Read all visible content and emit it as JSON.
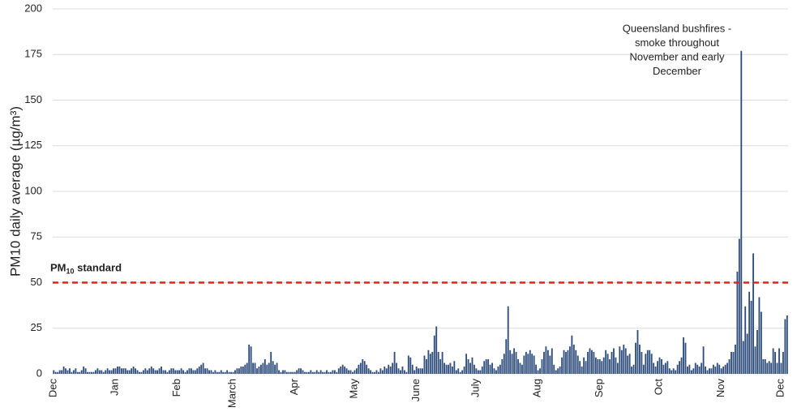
{
  "chart_data": {
    "type": "bar",
    "ylabel": "PM10 daily average (µg/m³)",
    "categories": [
      "Dec",
      null,
      null,
      null,
      null,
      null,
      null,
      null,
      null,
      null,
      null,
      null,
      null,
      null,
      null,
      null,
      null,
      null,
      null,
      null,
      null,
      null,
      null,
      null,
      null,
      null,
      null,
      null,
      null,
      null,
      null,
      "Jan",
      null,
      null,
      null,
      null,
      null,
      null,
      null,
      null,
      null,
      null,
      null,
      null,
      null,
      null,
      null,
      null,
      null,
      null,
      null,
      null,
      null,
      null,
      null,
      null,
      null,
      null,
      null,
      null,
      null,
      null,
      "Feb",
      null,
      null,
      null,
      null,
      null,
      null,
      null,
      null,
      null,
      null,
      null,
      null,
      null,
      null,
      null,
      null,
      null,
      null,
      null,
      null,
      null,
      null,
      null,
      null,
      null,
      null,
      null,
      "March",
      null,
      null,
      null,
      null,
      null,
      null,
      null,
      null,
      null,
      null,
      null,
      null,
      null,
      null,
      null,
      null,
      null,
      null,
      null,
      null,
      null,
      null,
      null,
      null,
      null,
      null,
      null,
      null,
      null,
      null,
      "Apr",
      null,
      null,
      null,
      null,
      null,
      null,
      null,
      null,
      null,
      null,
      null,
      null,
      null,
      null,
      null,
      null,
      null,
      null,
      null,
      null,
      null,
      null,
      null,
      null,
      null,
      null,
      null,
      null,
      null,
      "May",
      null,
      null,
      null,
      null,
      null,
      null,
      null,
      null,
      null,
      null,
      null,
      null,
      null,
      null,
      null,
      null,
      null,
      null,
      null,
      null,
      null,
      null,
      null,
      null,
      null,
      null,
      null,
      null,
      null,
      null,
      "June",
      null,
      null,
      null,
      null,
      null,
      null,
      null,
      null,
      null,
      null,
      null,
      null,
      null,
      null,
      null,
      null,
      null,
      null,
      null,
      null,
      null,
      null,
      null,
      null,
      null,
      null,
      null,
      null,
      null,
      "July",
      null,
      null,
      null,
      null,
      null,
      null,
      null,
      null,
      null,
      null,
      null,
      null,
      null,
      null,
      null,
      null,
      null,
      null,
      null,
      null,
      null,
      null,
      null,
      null,
      null,
      null,
      null,
      null,
      null,
      null,
      "Aug",
      null,
      null,
      null,
      null,
      null,
      null,
      null,
      null,
      null,
      null,
      null,
      null,
      null,
      null,
      null,
      null,
      null,
      null,
      null,
      null,
      null,
      null,
      null,
      null,
      null,
      null,
      null,
      null,
      null,
      null,
      "Sep",
      null,
      null,
      null,
      null,
      null,
      null,
      null,
      null,
      null,
      null,
      null,
      null,
      null,
      null,
      null,
      null,
      null,
      null,
      null,
      null,
      null,
      null,
      null,
      null,
      null,
      null,
      null,
      null,
      null,
      "Oct",
      null,
      null,
      null,
      null,
      null,
      null,
      null,
      null,
      null,
      null,
      null,
      null,
      null,
      null,
      null,
      null,
      null,
      null,
      null,
      null,
      null,
      null,
      null,
      null,
      null,
      null,
      null,
      null,
      null,
      null,
      "Nov",
      null,
      null,
      null,
      null,
      null,
      null,
      null,
      null,
      null,
      null,
      null,
      null,
      null,
      null,
      null,
      null,
      null,
      null,
      null,
      null,
      null,
      null,
      null,
      null,
      null,
      null,
      null,
      null,
      null,
      "Dec",
      null,
      null,
      null
    ],
    "values": [
      2,
      1,
      1,
      2,
      2,
      4,
      3,
      2,
      3,
      1,
      2,
      3,
      1,
      1,
      2,
      4,
      3,
      1,
      1,
      1,
      1,
      2,
      3,
      2,
      2,
      1,
      2,
      3,
      2,
      2,
      3,
      3,
      4,
      4,
      3,
      3,
      3,
      2,
      2,
      3,
      4,
      3,
      2,
      1,
      1,
      2,
      3,
      2,
      3,
      4,
      3,
      2,
      2,
      3,
      4,
      2,
      2,
      1,
      2,
      3,
      3,
      2,
      2,
      2,
      3,
      2,
      1,
      2,
      3,
      3,
      2,
      2,
      3,
      4,
      5,
      6,
      3,
      3,
      2,
      2,
      1,
      2,
      1,
      1,
      2,
      1,
      1,
      2,
      1,
      1,
      1,
      2,
      3,
      3,
      4,
      4,
      5,
      6,
      16,
      15,
      6,
      6,
      3,
      4,
      5,
      6,
      8,
      5,
      6,
      12,
      7,
      5,
      6,
      2,
      1,
      2,
      2,
      1,
      1,
      1,
      1,
      1,
      2,
      3,
      3,
      2,
      1,
      1,
      1,
      2,
      1,
      1,
      2,
      1,
      2,
      1,
      1,
      2,
      1,
      1,
      2,
      2,
      1,
      3,
      4,
      5,
      4,
      3,
      2,
      2,
      1,
      2,
      3,
      5,
      6,
      8,
      7,
      5,
      3,
      2,
      1,
      1,
      2,
      1,
      3,
      2,
      4,
      3,
      5,
      4,
      6,
      12,
      6,
      3,
      2,
      4,
      2,
      1,
      10,
      9,
      5,
      2,
      4,
      3,
      3,
      3,
      10,
      8,
      13,
      11,
      12,
      21,
      26,
      12,
      8,
      12,
      6,
      5,
      5,
      6,
      4,
      7,
      2,
      3,
      1,
      2,
      4,
      11,
      8,
      6,
      9,
      5,
      3,
      2,
      2,
      4,
      7,
      8,
      8,
      5,
      6,
      3,
      2,
      4,
      5,
      8,
      11,
      19,
      37,
      13,
      11,
      14,
      12,
      8,
      6,
      5,
      10,
      12,
      11,
      13,
      11,
      10,
      5,
      2,
      3,
      8,
      12,
      15,
      13,
      10,
      14,
      5,
      2,
      3,
      4,
      9,
      13,
      12,
      13,
      15,
      21,
      16,
      13,
      10,
      7,
      4,
      9,
      7,
      12,
      14,
      13,
      12,
      9,
      8,
      8,
      7,
      9,
      13,
      11,
      8,
      12,
      14,
      9,
      6,
      15,
      13,
      16,
      14,
      10,
      11,
      4,
      5,
      17,
      24,
      16,
      12,
      5,
      11,
      13,
      13,
      11,
      6,
      4,
      7,
      9,
      8,
      5,
      6,
      7,
      3,
      2,
      3,
      2,
      5,
      7,
      9,
      20,
      17,
      4,
      5,
      2,
      3,
      6,
      5,
      4,
      6,
      15,
      4,
      2,
      3,
      3,
      5,
      4,
      6,
      5,
      3,
      4,
      5,
      6,
      8,
      12,
      12,
      16,
      56,
      74,
      177,
      18,
      37,
      22,
      45,
      40,
      66,
      15,
      24,
      42,
      34,
      8,
      8,
      6,
      7,
      6,
      14,
      12,
      6,
      14,
      6,
      12,
      30,
      32
    ],
    "color": "#2e4d7b",
    "ylim": [
      0,
      200
    ],
    "yticks": [
      0,
      25,
      50,
      75,
      100,
      125,
      150,
      175,
      200
    ],
    "grid": true,
    "reference_line": {
      "value": 50,
      "label": "PM",
      "label_sub": "10",
      "label_suffix": " standard",
      "color": "#e8201b"
    },
    "annotation": [
      "Queensland bushfires -",
      "smoke throughout",
      "November and early",
      "December"
    ]
  }
}
